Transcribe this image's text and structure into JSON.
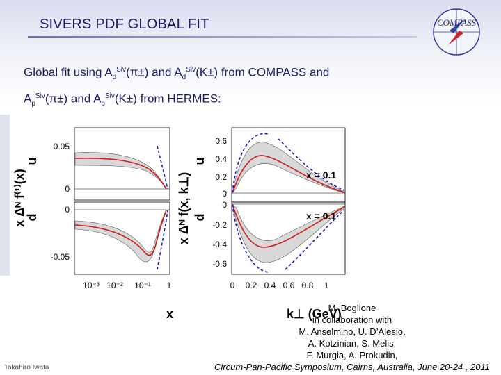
{
  "slide": {
    "title": "SIVERS PDF GLOBAL FIT",
    "logo_text": "COMPASS",
    "subtitle": {
      "l1_a": "Global fit using A",
      "l1_b": "d",
      "l1_c": "Siv",
      "l1_d": "(π±) and A",
      "l1_e": "d",
      "l1_f": "Siv",
      "l1_g": "(K±) from COMPASS and",
      "l2_a": "A",
      "l2_b": "p",
      "l2_c": "Siv",
      "l2_d": "(π±) and A",
      "l2_e": "p",
      "l2_f": "Siv",
      "l2_g": "(K±) from HERMES:"
    },
    "plots": {
      "left": {
        "label_u": "u",
        "label_d": "d",
        "ylabel": "x Δᴺ f⁽¹⁾(x)",
        "xlabel": "x",
        "yticks_top": [
          "0.05",
          "0"
        ],
        "yticks_bottom": [
          "0",
          "-0.05"
        ],
        "xticks": [
          "10⁻³",
          "10⁻²",
          "10⁻¹",
          "1"
        ]
      },
      "right": {
        "label_u": "u",
        "label_d": "d",
        "ylabel": "x Δᴺ f(x, k⊥)",
        "xlabel": "k⊥  (GeV)",
        "yticks_top": [
          "0.6",
          "0.4",
          "0.2",
          "0"
        ],
        "yticks_bottom": [
          "0",
          "-0.2",
          "-0.4",
          "-0.6"
        ],
        "xticks": [
          "0",
          "0.2",
          "0.4",
          "0.6",
          "0.8",
          "1"
        ],
        "note_top": "x = 0.1",
        "note_bottom": "x = 0.1"
      }
    },
    "credit": {
      "line1": "M. Boglione",
      "line2": "in collaboration with",
      "line3": "M. Anselmino, U. D’Alesio,",
      "line4": "A. Kotzinian, S. Melis,",
      "line5": "F. Murgia, A. Prokudin,",
      "line6": "Circum-Pan-Pacific Symposium, Cairns, Australia, June 20-24 , 2011"
    },
    "author": "Takahiro Iwata",
    "colors": {
      "title": "#1a1a66",
      "curve_red": "#d11a1a",
      "curve_blue": "#1a1ac8",
      "band": "#d8d8d8"
    }
  }
}
